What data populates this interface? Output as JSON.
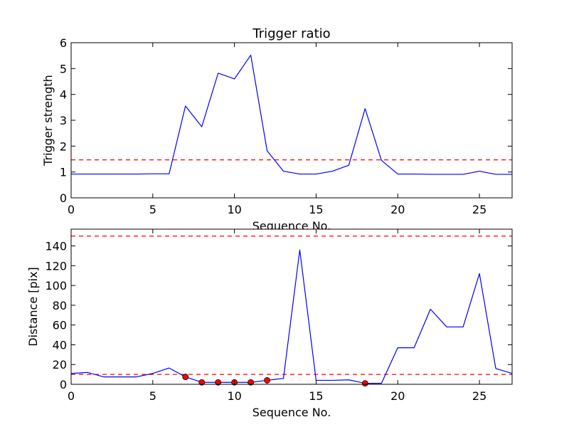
{
  "chart_data": [
    {
      "type": "line",
      "title": "Trigger ratio",
      "xlabel": "Sequence No.",
      "ylabel": "Trigger strength",
      "xlim": [
        0,
        27
      ],
      "ylim": [
        0,
        6
      ],
      "xticks": [
        0,
        5,
        10,
        15,
        20,
        25
      ],
      "yticks": [
        0,
        1,
        2,
        3,
        4,
        5,
        6
      ],
      "grid": false,
      "series": [
        {
          "style": "line",
          "color": "#0000ff",
          "x": [
            0,
            1,
            2,
            3,
            4,
            5,
            6,
            7,
            8,
            9,
            10,
            11,
            12,
            13,
            14,
            15,
            16,
            17,
            18,
            19,
            20,
            21,
            22,
            23,
            24,
            25,
            26,
            27
          ],
          "y": [
            0.92,
            0.92,
            0.92,
            0.92,
            0.92,
            0.93,
            0.93,
            3.55,
            2.75,
            4.82,
            4.6,
            5.52,
            1.82,
            1.03,
            0.92,
            0.92,
            1.03,
            1.26,
            3.45,
            1.45,
            0.92,
            0.92,
            0.91,
            0.91,
            0.91,
            1.03,
            0.91,
            0.91
          ]
        }
      ],
      "reference_lines": [
        {
          "axis": "y",
          "value": 1.47,
          "color": "#ff0000",
          "style": "dashed"
        }
      ]
    },
    {
      "type": "line",
      "title": "",
      "xlabel": "Sequence No.",
      "ylabel": "Distance [pix]",
      "xlim": [
        0,
        27
      ],
      "ylim": [
        0,
        157
      ],
      "xticks": [
        0,
        5,
        10,
        15,
        20,
        25
      ],
      "yticks": [
        0,
        20,
        40,
        60,
        80,
        100,
        120,
        140
      ],
      "grid": false,
      "series": [
        {
          "style": "line",
          "color": "#0000ff",
          "x": [
            0,
            1,
            2,
            3,
            4,
            5,
            6,
            7,
            8,
            9,
            10,
            11,
            12,
            13,
            14,
            15,
            16,
            17,
            18,
            19,
            20,
            21,
            22,
            23,
            24,
            25,
            26,
            27
          ],
          "y": [
            11,
            12,
            7.5,
            7.5,
            7.5,
            11,
            16.5,
            7.5,
            2,
            2,
            2,
            2,
            4,
            6,
            136,
            4,
            4,
            4.5,
            1,
            1,
            37,
            37,
            76,
            58,
            58,
            112,
            16,
            11
          ]
        },
        {
          "style": "markers",
          "color": "#ff0000",
          "x": [
            7,
            8,
            9,
            10,
            11,
            12,
            18
          ],
          "y": [
            7.5,
            2,
            2,
            2,
            2,
            4,
            1
          ]
        }
      ],
      "reference_lines": [
        {
          "axis": "y",
          "value": 10,
          "color": "#ff0000",
          "style": "dashed"
        },
        {
          "axis": "y",
          "value": 150,
          "color": "#ff0000",
          "style": "dashed"
        }
      ]
    }
  ]
}
